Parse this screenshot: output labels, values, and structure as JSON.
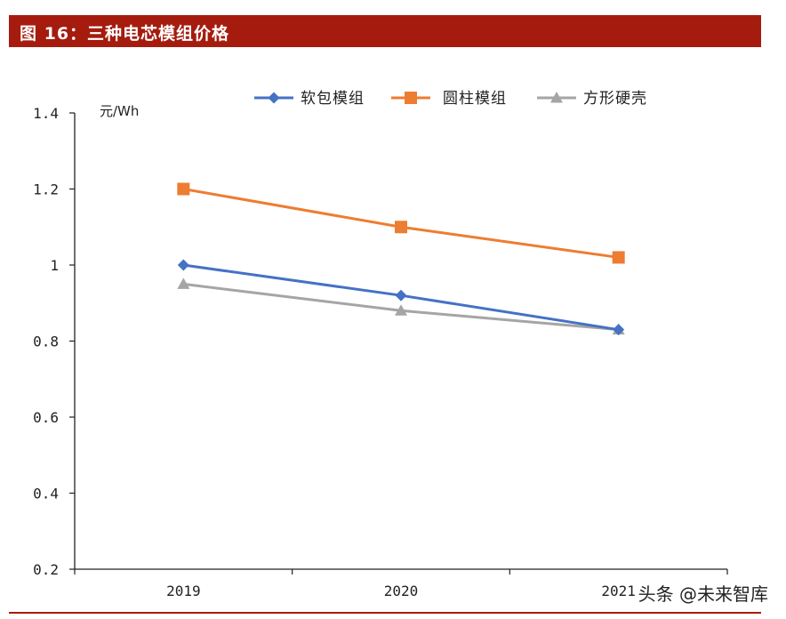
{
  "header": {
    "title": "图 16：三种电芯模组价格"
  },
  "watermark": "头条 @未来智库",
  "chart_data": {
    "type": "line",
    "title": "",
    "xlabel": "",
    "ylabel": "元/Wh",
    "categories": [
      "2019",
      "2020",
      "2021"
    ],
    "ylim": [
      0.2,
      1.4
    ],
    "yticks": [
      "1.4",
      "1.2",
      "1",
      "0.8",
      "0.6",
      "0.4",
      "0.2"
    ],
    "grid": false,
    "legend_position": "top",
    "series": [
      {
        "name": "软包模组",
        "values": [
          1.0,
          0.92,
          0.83
        ],
        "color": "#4472c4",
        "marker": "diamond"
      },
      {
        "name": "圆柱模组",
        "values": [
          1.2,
          1.1,
          1.02
        ],
        "color": "#ed7d31",
        "marker": "square"
      },
      {
        "name": "方形硬壳",
        "values": [
          0.95,
          0.88,
          0.83
        ],
        "color": "#a5a5a5",
        "marker": "triangle"
      }
    ]
  }
}
